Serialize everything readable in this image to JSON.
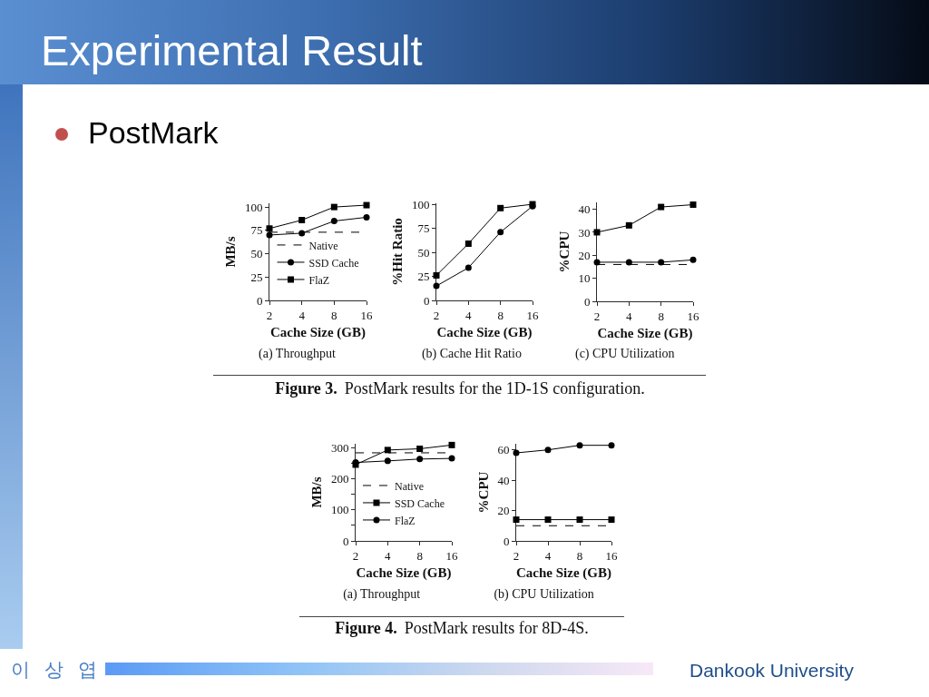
{
  "chart_data": [
    {
      "type": "line",
      "title": "(a) Throughput",
      "xlabel": "Cache Size (GB)",
      "ylabel": "MB/s",
      "x": [
        2,
        4,
        8,
        16
      ],
      "log": "x",
      "xlim": [
        2,
        16
      ],
      "xticks": [
        2,
        4,
        8,
        16
      ],
      "ylim": [
        0,
        104
      ],
      "yticks": [
        0,
        25,
        50,
        75,
        100
      ],
      "legend": "bottom",
      "series": [
        {
          "name": "Native",
          "color": "#000000",
          "values": [
            73,
            73,
            73,
            73
          ],
          "marker": "none",
          "line_style": "dashed"
        },
        {
          "name": "SSD Cache",
          "color": "#000000",
          "values": [
            70,
            72,
            85,
            89
          ],
          "marker": "circle",
          "line_style": "solid"
        },
        {
          "name": "FlaZ",
          "color": "#000000",
          "values": [
            77,
            86,
            100,
            102
          ],
          "marker": "square",
          "line_style": "solid"
        }
      ],
      "annotations": [
        "Experimental Result",
        "PostMark",
        "Figure 3.",
        "PostMark results for the 1D-1S configuration."
      ]
    },
    {
      "type": "line",
      "title": "(b) Cache Hit Ratio",
      "xlabel": "Cache Size (GB)",
      "ylabel": "%Hit Ratio",
      "x": [
        2,
        4,
        8,
        16
      ],
      "log": "x",
      "xlim": [
        2,
        16
      ],
      "xticks": [
        2,
        4,
        8,
        16
      ],
      "ylim": [
        0,
        101
      ],
      "yticks": [
        0,
        25,
        50,
        75,
        100
      ],
      "series": [
        {
          "color": "#000000",
          "values": [
            15,
            34,
            71,
            98
          ],
          "marker": "circle",
          "line_style": "solid"
        },
        {
          "color": "#000000",
          "values": [
            26,
            59,
            96,
            100
          ],
          "marker": "square",
          "line_style": "solid"
        }
      ]
    },
    {
      "type": "line",
      "title": "(c) CPU Utilization",
      "xlabel": "Cache Size (GB)",
      "ylabel": "%CPU",
      "x": [
        2,
        4,
        8,
        16
      ],
      "log": "x",
      "xlim": [
        2,
        16
      ],
      "xticks": [
        2,
        4,
        8,
        16
      ],
      "ylim": [
        0,
        43
      ],
      "yticks": [
        0,
        10,
        20,
        30,
        40
      ],
      "series": [
        {
          "color": "#000000",
          "values": [
            16,
            16,
            16,
            16
          ],
          "marker": "none",
          "line_style": "dashed"
        },
        {
          "color": "#000000",
          "values": [
            17,
            17,
            17,
            18
          ],
          "marker": "circle",
          "line_style": "solid"
        },
        {
          "color": "#000000",
          "values": [
            30,
            33,
            41,
            42
          ],
          "marker": "square",
          "line_style": "solid"
        }
      ]
    },
    {
      "type": "line",
      "title": "(a) Throughput",
      "xlabel": "Cache Size (GB)",
      "ylabel": "MB/s",
      "x": [
        2,
        4,
        8,
        16
      ],
      "log": "x",
      "xlim": [
        2,
        16
      ],
      "xticks": [
        2,
        4,
        8,
        16
      ],
      "ylim": [
        0,
        312
      ],
      "yticks": [
        0,
        {
          "value": 50,
          "label": null
        },
        100,
        {
          "value": 150,
          "label": null
        },
        200,
        {
          "value": 250,
          "label": null
        },
        300
      ],
      "legend": "bottom",
      "series": [
        {
          "name": "Native",
          "color": "#000000",
          "values": [
            283,
            283,
            283,
            283
          ],
          "marker": "none",
          "line_style": "dashed"
        },
        {
          "name": "SSD Cache",
          "color": "#000000",
          "values": [
            245,
            292,
            296,
            308
          ],
          "marker": "square",
          "line_style": "solid"
        },
        {
          "name": "FlaZ",
          "color": "#000000",
          "values": [
            252,
            257,
            263,
            265
          ],
          "marker": "circle",
          "line_style": "solid"
        }
      ],
      "annotations": [
        "Figure 4.",
        "PostMark results for 8D-4S."
      ]
    },
    {
      "type": "line",
      "title": "(b) CPU Utilization",
      "xlabel": "Cache Size (GB)",
      "ylabel": "%CPU",
      "x": [
        2,
        4,
        8,
        16
      ],
      "log": "x",
      "xlim": [
        2,
        16
      ],
      "xticks": [
        2,
        4,
        8,
        16
      ],
      "ylim": [
        0,
        64
      ],
      "yticks": [
        0,
        20,
        40,
        60
      ],
      "series": [
        {
          "color": "#000000",
          "values": [
            10,
            10,
            10,
            10
          ],
          "marker": "none",
          "line_style": "dashed"
        },
        {
          "color": "#000000",
          "values": [
            58,
            60,
            63,
            63
          ],
          "marker": "circle",
          "line_style": "solid"
        },
        {
          "color": "#000000",
          "values": [
            14,
            14,
            14,
            14
          ],
          "marker": "square",
          "line_style": "solid"
        }
      ],
      "annotations": [
        "이 상 엽",
        "Dankook University"
      ]
    }
  ]
}
